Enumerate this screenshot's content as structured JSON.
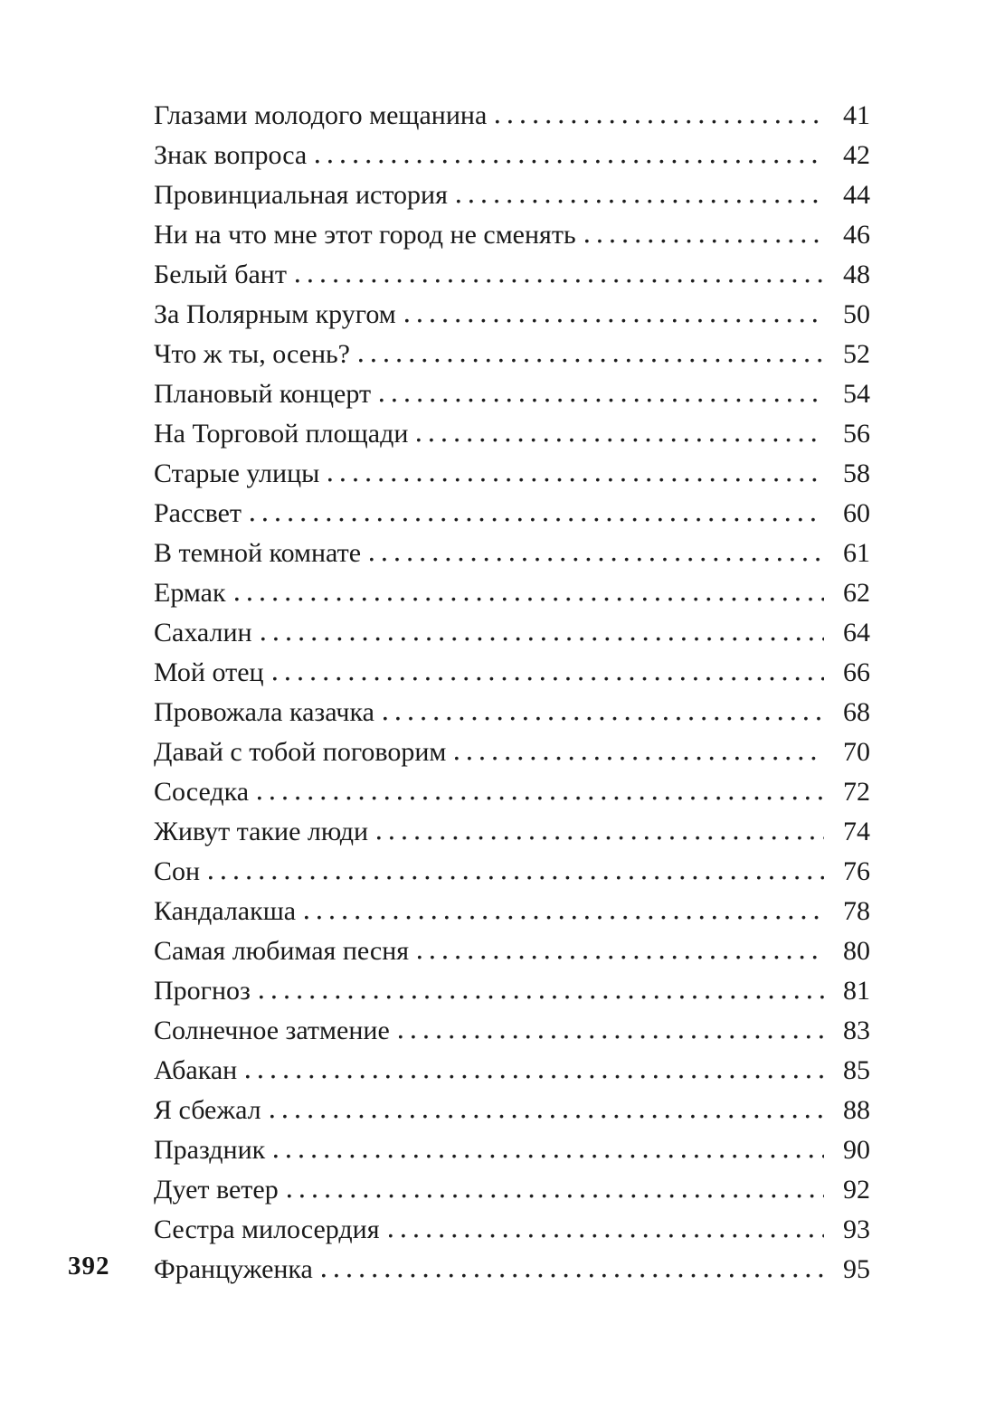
{
  "page": {
    "folio": "392"
  },
  "toc": {
    "entries": [
      {
        "title": "Глазами молодого мещанина",
        "page": "41"
      },
      {
        "title": "Знак вопроса",
        "page": "42"
      },
      {
        "title": "Провинциальная история",
        "page": "44"
      },
      {
        "title": "Ни на что мне этот город не сменять",
        "page": "46"
      },
      {
        "title": "Белый бант",
        "page": "48"
      },
      {
        "title": "За Полярным кругом",
        "page": "50"
      },
      {
        "title": "Что ж ты, осень?",
        "page": "52"
      },
      {
        "title": "Плановый концерт",
        "page": "54"
      },
      {
        "title": "На Торговой площади",
        "page": "56"
      },
      {
        "title": "Старые улицы",
        "page": "58"
      },
      {
        "title": "Рассвет",
        "page": "60"
      },
      {
        "title": "В темной комнате",
        "page": "61"
      },
      {
        "title": "Ермак",
        "page": "62"
      },
      {
        "title": "Сахалин",
        "page": "64"
      },
      {
        "title": "Мой отец",
        "page": "66"
      },
      {
        "title": "Провожала казачка",
        "page": "68"
      },
      {
        "title": "Давай с тобой поговорим",
        "page": "70"
      },
      {
        "title": "Соседка",
        "page": "72"
      },
      {
        "title": "Живут такие люди",
        "page": "74"
      },
      {
        "title": "Сон",
        "page": "76"
      },
      {
        "title": "Кандалакша",
        "page": "78"
      },
      {
        "title": "Самая любимая песня",
        "page": "80"
      },
      {
        "title": "Прогноз",
        "page": "81"
      },
      {
        "title": "Солнечное затмение",
        "page": "83"
      },
      {
        "title": "Абакан",
        "page": "85"
      },
      {
        "title": "Я сбежал",
        "page": "88"
      },
      {
        "title": "Праздник",
        "page": "90"
      },
      {
        "title": "Дует ветер",
        "page": "92"
      },
      {
        "title": "Сестра милосердия",
        "page": "93"
      },
      {
        "title": "Француженка",
        "page": "95"
      }
    ]
  }
}
